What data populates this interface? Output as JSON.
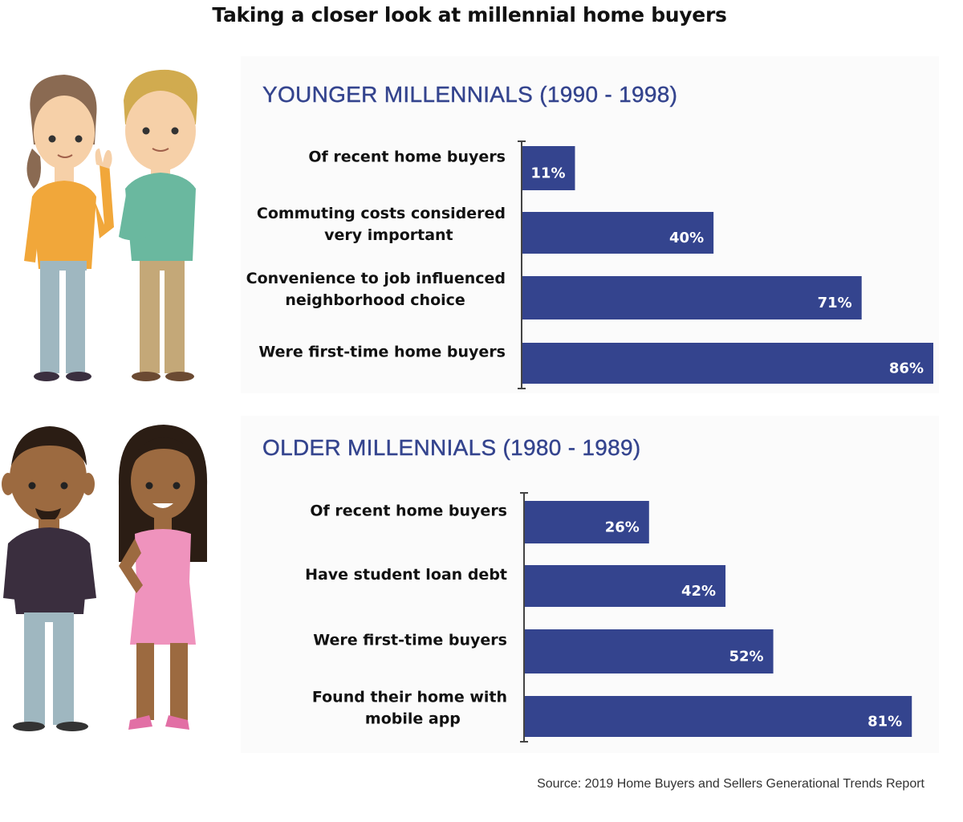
{
  "title": "Taking a closer look at millennial home buyers",
  "source": "Source: 2019 Home Buyers and Sellers Generational Trends Report",
  "colors": {
    "bar": "#34448e",
    "heading": "#34448e",
    "axis": "#444444"
  },
  "chart_data": [
    {
      "type": "bar",
      "orientation": "horizontal",
      "title": "YOUNGER MILLENNIALS (1990 - 1998)",
      "categories": [
        [
          "Of recent home buyers"
        ],
        [
          "Commuting costs considered",
          "very important"
        ],
        [
          "Convenience to job influenced",
          "neighborhood choice"
        ],
        [
          "Were first-time home buyers"
        ]
      ],
      "values": [
        11,
        40,
        71,
        86
      ],
      "value_labels": [
        "11%",
        "40%",
        "71%",
        "86%"
      ],
      "unit": "%",
      "xlim": [
        0,
        86
      ]
    },
    {
      "type": "bar",
      "orientation": "horizontal",
      "title": "OLDER MILLENNIALS (1980 - 1989)",
      "categories": [
        [
          "Of recent home buyers"
        ],
        [
          "Have student loan debt"
        ],
        [
          "Were first-time buyers"
        ],
        [
          "Found their home with",
          "mobile app"
        ]
      ],
      "values": [
        26,
        42,
        52,
        81
      ],
      "value_labels": [
        "26%",
        "42%",
        "52%",
        "81%"
      ],
      "unit": "%",
      "xlim": [
        0,
        86
      ]
    }
  ]
}
